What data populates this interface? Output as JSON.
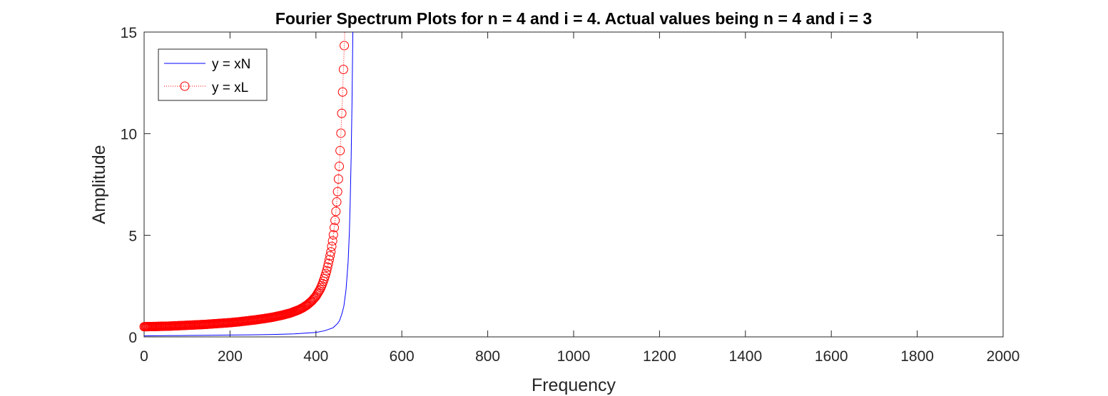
{
  "chart_data": {
    "type": "line",
    "title": "Fourier Spectrum Plots for n = 4 and i = 4. Actual values being n = 4 and i = 3",
    "xlabel": "Frequency",
    "ylabel": "Amplitude",
    "xlim": [
      0,
      2000
    ],
    "ylim": [
      0,
      15
    ],
    "xticks": [
      0,
      200,
      400,
      600,
      800,
      1000,
      1200,
      1400,
      1600,
      1800,
      2000
    ],
    "yticks": [
      0,
      5,
      10,
      15
    ],
    "grid": false,
    "legend_position": "top-left",
    "series": [
      {
        "name": "y = xN",
        "color": "#0000ff",
        "style": "solid line",
        "points": [
          [
            0,
            0.05
          ],
          [
            50,
            0.06
          ],
          [
            100,
            0.07
          ],
          [
            150,
            0.08
          ],
          [
            200,
            0.09
          ],
          [
            250,
            0.1
          ],
          [
            300,
            0.12
          ],
          [
            350,
            0.15
          ],
          [
            400,
            0.22
          ],
          [
            420,
            0.3
          ],
          [
            440,
            0.45
          ],
          [
            450,
            0.65
          ],
          [
            455,
            0.8
          ],
          [
            460,
            1.1
          ],
          [
            465,
            1.5
          ],
          [
            470,
            2.3
          ],
          [
            475,
            3.7
          ],
          [
            478,
            5.2
          ],
          [
            480,
            6.8
          ],
          [
            482,
            8.8
          ],
          [
            484,
            11.5
          ],
          [
            486,
            15
          ]
        ]
      },
      {
        "name": "y = xL",
        "color": "#ff0000",
        "style": "dotted line with circle markers",
        "points": [
          [
            0,
            0.5
          ],
          [
            20,
            0.51
          ],
          [
            40,
            0.52
          ],
          [
            60,
            0.53
          ],
          [
            80,
            0.55
          ],
          [
            100,
            0.57
          ],
          [
            120,
            0.59
          ],
          [
            140,
            0.61
          ],
          [
            160,
            0.64
          ],
          [
            180,
            0.67
          ],
          [
            200,
            0.7
          ],
          [
            220,
            0.74
          ],
          [
            240,
            0.79
          ],
          [
            260,
            0.84
          ],
          [
            280,
            0.9
          ],
          [
            300,
            0.97
          ],
          [
            320,
            1.06
          ],
          [
            340,
            1.17
          ],
          [
            360,
            1.33
          ],
          [
            370,
            1.44
          ],
          [
            380,
            1.58
          ],
          [
            390,
            1.76
          ],
          [
            400,
            2.0
          ],
          [
            410,
            2.35
          ],
          [
            415,
            2.6
          ],
          [
            420,
            2.9
          ],
          [
            425,
            3.25
          ],
          [
            430,
            3.7
          ],
          [
            435,
            4.2
          ],
          [
            440,
            4.9
          ],
          [
            445,
            5.8
          ],
          [
            450,
            7.0
          ],
          [
            455,
            8.6
          ],
          [
            458,
            9.9
          ],
          [
            461,
            11.4
          ],
          [
            464,
            13.1
          ],
          [
            466,
            14.3
          ],
          [
            467,
            15
          ]
        ]
      }
    ]
  }
}
